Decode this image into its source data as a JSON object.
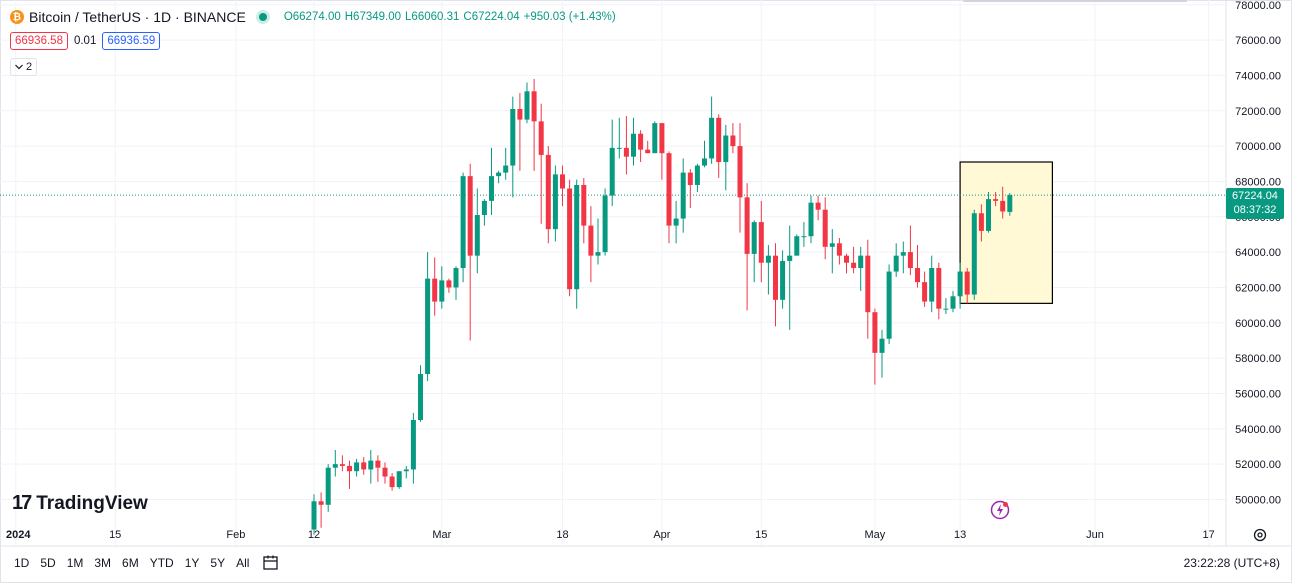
{
  "header": {
    "symbol": "Bitcoin / TetherUS · 1D · BINANCE",
    "coin_glyph": "₿",
    "ohlc": {
      "open_label": "O",
      "open": "66274.00",
      "high_label": "H",
      "high": "67349.00",
      "low_label": "L",
      "low": "66060.31",
      "close_label": "C",
      "close": "67224.04",
      "change": "+950.03 (+1.43%)"
    }
  },
  "quote": {
    "sell": "66936.58",
    "spread": "0.01",
    "buy": "66936.59"
  },
  "indicators_toggle": {
    "count": "2"
  },
  "logo": {
    "text": "TradingView",
    "mark": "17"
  },
  "timeframes": [
    "1D",
    "5D",
    "1M",
    "3M",
    "6M",
    "YTD",
    "1Y",
    "5Y",
    "All"
  ],
  "clock": "23:22:28 (UTC+8)",
  "last_price": {
    "price": "67224.04",
    "countdown": "08:37:32"
  },
  "colors": {
    "up": "#089981",
    "down": "#f23645",
    "highlight_fill": "#fff9d5",
    "highlight_border": "#000000"
  },
  "chart_data": {
    "type": "candlestick",
    "symbol": "BTCUSDT",
    "interval": "1D",
    "y_ticks": [
      50000,
      52000,
      54000,
      56000,
      58000,
      60000,
      62000,
      64000,
      66000,
      68000,
      70000,
      72000,
      74000,
      76000,
      78000
    ],
    "x_ticks": [
      {
        "label": "2024",
        "date": "2024-01-01"
      },
      {
        "label": "15",
        "date": "2024-01-15"
      },
      {
        "label": "Feb",
        "date": "2024-02-01"
      },
      {
        "label": "12",
        "date": "2024-02-12"
      },
      {
        "label": "Mar",
        "date": "2024-03-01"
      },
      {
        "label": "18",
        "date": "2024-03-18"
      },
      {
        "label": "Apr",
        "date": "2024-04-01"
      },
      {
        "label": "15",
        "date": "2024-04-15"
      },
      {
        "label": "May",
        "date": "2024-05-01"
      },
      {
        "label": "13",
        "date": "2024-05-13"
      },
      {
        "label": "Jun",
        "date": "2024-06-01"
      },
      {
        "label": "17",
        "date": "2024-06-17"
      }
    ],
    "candles": [
      {
        "date": "2024-02-12",
        "o": 48300,
        "h": 50300,
        "l": 48000,
        "c": 49900
      },
      {
        "date": "2024-02-13",
        "o": 49900,
        "h": 50400,
        "l": 48400,
        "c": 49700
      },
      {
        "date": "2024-02-14",
        "o": 49700,
        "h": 52000,
        "l": 49300,
        "c": 51800
      },
      {
        "date": "2024-02-15",
        "o": 51800,
        "h": 52800,
        "l": 51300,
        "c": 52000
      },
      {
        "date": "2024-02-16",
        "o": 52000,
        "h": 52500,
        "l": 51600,
        "c": 51900
      },
      {
        "date": "2024-02-17",
        "o": 51900,
        "h": 52200,
        "l": 50600,
        "c": 51600
      },
      {
        "date": "2024-02-18",
        "o": 51600,
        "h": 52300,
        "l": 51300,
        "c": 52100
      },
      {
        "date": "2024-02-19",
        "o": 52100,
        "h": 52400,
        "l": 51400,
        "c": 51700
      },
      {
        "date": "2024-02-20",
        "o": 51700,
        "h": 52800,
        "l": 50900,
        "c": 52200
      },
      {
        "date": "2024-02-21",
        "o": 52200,
        "h": 52500,
        "l": 51000,
        "c": 51800
      },
      {
        "date": "2024-02-22",
        "o": 51800,
        "h": 52100,
        "l": 50900,
        "c": 51300
      },
      {
        "date": "2024-02-23",
        "o": 51300,
        "h": 51500,
        "l": 50500,
        "c": 50700
      },
      {
        "date": "2024-02-24",
        "o": 50700,
        "h": 51600,
        "l": 50600,
        "c": 51600
      },
      {
        "date": "2024-02-25",
        "o": 51600,
        "h": 51900,
        "l": 51200,
        "c": 51700
      },
      {
        "date": "2024-02-26",
        "o": 51700,
        "h": 54900,
        "l": 50900,
        "c": 54500
      },
      {
        "date": "2024-02-27",
        "o": 54500,
        "h": 57600,
        "l": 54400,
        "c": 57100
      },
      {
        "date": "2024-02-28",
        "o": 57100,
        "h": 64000,
        "l": 56700,
        "c": 62500
      },
      {
        "date": "2024-02-29",
        "o": 62500,
        "h": 63700,
        "l": 60400,
        "c": 61200
      },
      {
        "date": "2024-03-01",
        "o": 61200,
        "h": 63200,
        "l": 60800,
        "c": 62400
      },
      {
        "date": "2024-03-02",
        "o": 62400,
        "h": 62500,
        "l": 61700,
        "c": 62000
      },
      {
        "date": "2024-03-03",
        "o": 62000,
        "h": 63200,
        "l": 61300,
        "c": 63100
      },
      {
        "date": "2024-03-04",
        "o": 63100,
        "h": 68500,
        "l": 62300,
        "c": 68300
      },
      {
        "date": "2024-03-05",
        "o": 68300,
        "h": 69000,
        "l": 59000,
        "c": 63800
      },
      {
        "date": "2024-03-06",
        "o": 63800,
        "h": 67600,
        "l": 62800,
        "c": 66100
      },
      {
        "date": "2024-03-07",
        "o": 66100,
        "h": 67000,
        "l": 65500,
        "c": 66900
      },
      {
        "date": "2024-03-08",
        "o": 66900,
        "h": 69900,
        "l": 66100,
        "c": 68300
      },
      {
        "date": "2024-03-09",
        "o": 68300,
        "h": 68600,
        "l": 67900,
        "c": 68500
      },
      {
        "date": "2024-03-10",
        "o": 68500,
        "h": 69900,
        "l": 68100,
        "c": 68900
      },
      {
        "date": "2024-03-11",
        "o": 68900,
        "h": 72800,
        "l": 67100,
        "c": 72100
      },
      {
        "date": "2024-03-12",
        "o": 72100,
        "h": 73000,
        "l": 68600,
        "c": 71500
      },
      {
        "date": "2024-03-13",
        "o": 71500,
        "h": 73600,
        "l": 71300,
        "c": 73100
      },
      {
        "date": "2024-03-14",
        "o": 73100,
        "h": 73800,
        "l": 68600,
        "c": 71400
      },
      {
        "date": "2024-03-15",
        "o": 71400,
        "h": 72400,
        "l": 65600,
        "c": 69500
      },
      {
        "date": "2024-03-16",
        "o": 69500,
        "h": 70000,
        "l": 64500,
        "c": 65300
      },
      {
        "date": "2024-03-17",
        "o": 65300,
        "h": 68900,
        "l": 64600,
        "c": 68400
      },
      {
        "date": "2024-03-18",
        "o": 68400,
        "h": 68900,
        "l": 66600,
        "c": 67600
      },
      {
        "date": "2024-03-19",
        "o": 67600,
        "h": 68100,
        "l": 61500,
        "c": 61900
      },
      {
        "date": "2024-03-20",
        "o": 61900,
        "h": 68100,
        "l": 60800,
        "c": 67800
      },
      {
        "date": "2024-03-21",
        "o": 67800,
        "h": 68200,
        "l": 64500,
        "c": 65500
      },
      {
        "date": "2024-03-22",
        "o": 65500,
        "h": 66600,
        "l": 62300,
        "c": 63800
      },
      {
        "date": "2024-03-23",
        "o": 63800,
        "h": 65900,
        "l": 63300,
        "c": 64000
      },
      {
        "date": "2024-03-24",
        "o": 64000,
        "h": 67600,
        "l": 63800,
        "c": 67200
      },
      {
        "date": "2024-03-25",
        "o": 67200,
        "h": 71500,
        "l": 66600,
        "c": 69900
      },
      {
        "date": "2024-03-26",
        "o": 69900,
        "h": 71600,
        "l": 69300,
        "c": 69900
      },
      {
        "date": "2024-03-27",
        "o": 69900,
        "h": 71700,
        "l": 68400,
        "c": 69400
      },
      {
        "date": "2024-03-28",
        "o": 69400,
        "h": 71600,
        "l": 68900,
        "c": 70700
      },
      {
        "date": "2024-03-29",
        "o": 70700,
        "h": 70900,
        "l": 69100,
        "c": 69800
      },
      {
        "date": "2024-03-30",
        "o": 69800,
        "h": 70300,
        "l": 69600,
        "c": 69600
      },
      {
        "date": "2024-03-31",
        "o": 69600,
        "h": 71400,
        "l": 69600,
        "c": 71300
      },
      {
        "date": "2024-04-01",
        "o": 71300,
        "h": 71300,
        "l": 68100,
        "c": 69600
      },
      {
        "date": "2024-04-02",
        "o": 69600,
        "h": 69700,
        "l": 64500,
        "c": 65500
      },
      {
        "date": "2024-04-03",
        "o": 65500,
        "h": 66900,
        "l": 64500,
        "c": 65900
      },
      {
        "date": "2024-04-04",
        "o": 65900,
        "h": 69300,
        "l": 65100,
        "c": 68500
      },
      {
        "date": "2024-04-05",
        "o": 68500,
        "h": 68700,
        "l": 66500,
        "c": 67800
      },
      {
        "date": "2024-04-06",
        "o": 67800,
        "h": 69000,
        "l": 67400,
        "c": 68900
      },
      {
        "date": "2024-04-07",
        "o": 68900,
        "h": 70300,
        "l": 68800,
        "c": 69300
      },
      {
        "date": "2024-04-08",
        "o": 69300,
        "h": 72800,
        "l": 69000,
        "c": 71600
      },
      {
        "date": "2024-04-09",
        "o": 71600,
        "h": 71800,
        "l": 68200,
        "c": 69100
      },
      {
        "date": "2024-04-10",
        "o": 69100,
        "h": 71200,
        "l": 67500,
        "c": 70600
      },
      {
        "date": "2024-04-11",
        "o": 70600,
        "h": 71300,
        "l": 69600,
        "c": 70000
      },
      {
        "date": "2024-04-12",
        "o": 70000,
        "h": 71300,
        "l": 65100,
        "c": 67100
      },
      {
        "date": "2024-04-13",
        "o": 67100,
        "h": 67900,
        "l": 60700,
        "c": 63900
      },
      {
        "date": "2024-04-14",
        "o": 63900,
        "h": 65800,
        "l": 62300,
        "c": 65700
      },
      {
        "date": "2024-04-15",
        "o": 65700,
        "h": 66900,
        "l": 62300,
        "c": 63400
      },
      {
        "date": "2024-04-16",
        "o": 63400,
        "h": 64400,
        "l": 61600,
        "c": 63800
      },
      {
        "date": "2024-04-17",
        "o": 63800,
        "h": 64500,
        "l": 59800,
        "c": 61300
      },
      {
        "date": "2024-04-18",
        "o": 61300,
        "h": 64100,
        "l": 60800,
        "c": 63500
      },
      {
        "date": "2024-04-19",
        "o": 63500,
        "h": 65500,
        "l": 59600,
        "c": 63800
      },
      {
        "date": "2024-04-20",
        "o": 63800,
        "h": 65000,
        "l": 63800,
        "c": 64900
      },
      {
        "date": "2024-04-21",
        "o": 64900,
        "h": 65700,
        "l": 64300,
        "c": 64900
      },
      {
        "date": "2024-04-22",
        "o": 64900,
        "h": 67200,
        "l": 64500,
        "c": 66800
      },
      {
        "date": "2024-04-23",
        "o": 66800,
        "h": 67200,
        "l": 65800,
        "c": 66400
      },
      {
        "date": "2024-04-24",
        "o": 66400,
        "h": 67100,
        "l": 63600,
        "c": 64300
      },
      {
        "date": "2024-04-25",
        "o": 64300,
        "h": 65300,
        "l": 62800,
        "c": 64500
      },
      {
        "date": "2024-04-26",
        "o": 64500,
        "h": 64800,
        "l": 63300,
        "c": 63800
      },
      {
        "date": "2024-04-27",
        "o": 63800,
        "h": 63900,
        "l": 62800,
        "c": 63400
      },
      {
        "date": "2024-04-28",
        "o": 63400,
        "h": 64300,
        "l": 62800,
        "c": 63100
      },
      {
        "date": "2024-04-29",
        "o": 63100,
        "h": 64300,
        "l": 61800,
        "c": 63800
      },
      {
        "date": "2024-04-30",
        "o": 63800,
        "h": 64700,
        "l": 59100,
        "c": 60600
      },
      {
        "date": "2024-05-01",
        "o": 60600,
        "h": 60800,
        "l": 56500,
        "c": 58300
      },
      {
        "date": "2024-05-02",
        "o": 58300,
        "h": 59600,
        "l": 56900,
        "c": 59100
      },
      {
        "date": "2024-05-03",
        "o": 59100,
        "h": 63300,
        "l": 58800,
        "c": 62900
      },
      {
        "date": "2024-05-04",
        "o": 62900,
        "h": 64500,
        "l": 62600,
        "c": 63800
      },
      {
        "date": "2024-05-05",
        "o": 63800,
        "h": 64600,
        "l": 62800,
        "c": 64000
      },
      {
        "date": "2024-05-06",
        "o": 64000,
        "h": 65500,
        "l": 62700,
        "c": 63100
      },
      {
        "date": "2024-05-07",
        "o": 63100,
        "h": 64400,
        "l": 62000,
        "c": 62300
      },
      {
        "date": "2024-05-08",
        "o": 62300,
        "h": 62900,
        "l": 60900,
        "c": 61200
      },
      {
        "date": "2024-05-09",
        "o": 61200,
        "h": 63800,
        "l": 60600,
        "c": 63100
      },
      {
        "date": "2024-05-10",
        "o": 63100,
        "h": 63400,
        "l": 60200,
        "c": 60800
      },
      {
        "date": "2024-05-11",
        "o": 60800,
        "h": 61400,
        "l": 60500,
        "c": 60800
      },
      {
        "date": "2024-05-12",
        "o": 60800,
        "h": 61800,
        "l": 60600,
        "c": 61500
      },
      {
        "date": "2024-05-13",
        "o": 61500,
        "h": 63400,
        "l": 60800,
        "c": 62900
      },
      {
        "date": "2024-05-14",
        "o": 62900,
        "h": 63100,
        "l": 61100,
        "c": 61600
      },
      {
        "date": "2024-05-15",
        "o": 61600,
        "h": 66400,
        "l": 61300,
        "c": 66200
      },
      {
        "date": "2024-05-16",
        "o": 66200,
        "h": 66700,
        "l": 64600,
        "c": 65200
      },
      {
        "date": "2024-05-17",
        "o": 65200,
        "h": 67400,
        "l": 65100,
        "c": 67000
      },
      {
        "date": "2024-05-18",
        "o": 67000,
        "h": 67400,
        "l": 66600,
        "c": 66900
      },
      {
        "date": "2024-05-19",
        "o": 66900,
        "h": 67700,
        "l": 65900,
        "c": 66300
      },
      {
        "date": "2024-05-20",
        "o": 66274,
        "h": 67349,
        "l": 66060.31,
        "c": 67224.04
      }
    ],
    "last_price": 67224.04,
    "highlight_range": {
      "from": "2024-05-13",
      "to": "2024-05-26",
      "low": 61100,
      "high": 69100
    }
  }
}
